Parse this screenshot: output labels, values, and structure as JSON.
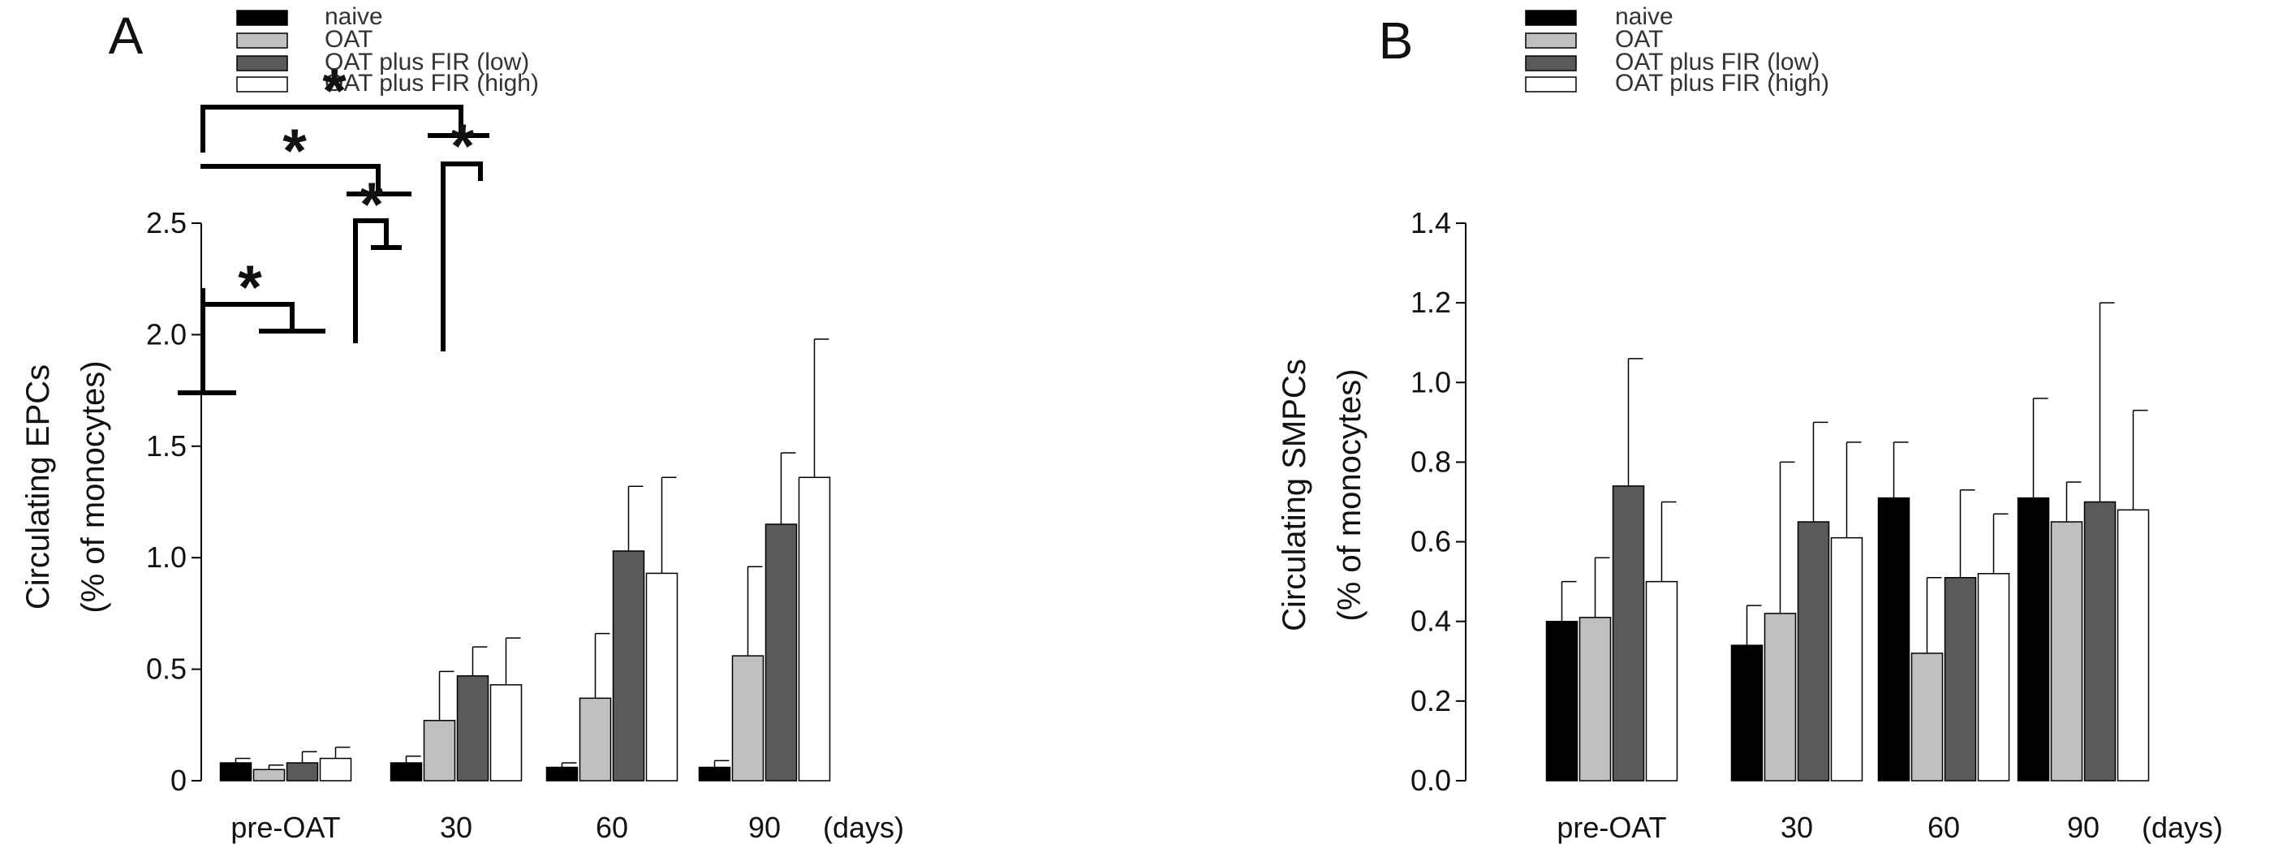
{
  "chart_data": [
    {
      "panel": "A",
      "type": "bar",
      "ylabel_line1": "Circulating EPCs",
      "ylabel_line2": "(% of monocytes)",
      "ylim": [
        0,
        2.5
      ],
      "yticks": [
        0,
        0.5,
        1.0,
        1.5,
        2.0,
        2.5
      ],
      "ytick_labels": [
        "0",
        "0.5",
        "1.0",
        "1.5",
        "2.0",
        "2.5"
      ],
      "categories": [
        "pre-OAT",
        "30",
        "60",
        "90"
      ],
      "x_unit": "(days)",
      "series": [
        {
          "name": "naive",
          "fill": "#000000",
          "values": [
            0.08,
            0.08,
            0.06,
            0.06
          ],
          "errors": [
            0.02,
            0.03,
            0.02,
            0.03
          ]
        },
        {
          "name": "OAT",
          "fill": "#c0c0c0",
          "values": [
            0.05,
            0.27,
            0.37,
            0.56
          ],
          "errors": [
            0.02,
            0.22,
            0.29,
            0.4
          ]
        },
        {
          "name": "OAT plus FIR (low)",
          "fill": "#5a5a5a",
          "values": [
            0.08,
            0.47,
            1.03,
            1.15
          ],
          "errors": [
            0.05,
            0.13,
            0.29,
            0.32
          ]
        },
        {
          "name": "OAT plus FIR (high)",
          "fill": "#ffffff",
          "values": [
            0.1,
            0.43,
            0.93,
            1.36
          ],
          "errors": [
            0.05,
            0.21,
            0.43,
            0.62
          ]
        }
      ],
      "significance_marker": "*"
    },
    {
      "panel": "B",
      "type": "bar",
      "ylabel_line1": "Circulating SMPCs",
      "ylabel_line2": "(% of monocytes)",
      "ylim": [
        0,
        1.4
      ],
      "yticks": [
        0,
        0.2,
        0.4,
        0.6,
        0.8,
        1.0,
        1.2,
        1.4
      ],
      "ytick_labels": [
        "0.0",
        "0.2",
        "0.4",
        "0.6",
        "0.8",
        "1.0",
        "1.2",
        "1.4"
      ],
      "categories": [
        "pre-OAT",
        "30",
        "60",
        "90"
      ],
      "x_unit": "(days)",
      "series": [
        {
          "name": "naive",
          "fill": "#000000",
          "values": [
            0.4,
            0.34,
            0.71,
            0.71
          ],
          "errors": [
            0.1,
            0.1,
            0.14,
            0.25
          ]
        },
        {
          "name": "OAT",
          "fill": "#c0c0c0",
          "values": [
            0.41,
            0.42,
            0.32,
            0.65
          ],
          "errors": [
            0.15,
            0.38,
            0.19,
            0.1
          ]
        },
        {
          "name": "OAT plus FIR (low)",
          "fill": "#5a5a5a",
          "values": [
            0.74,
            0.65,
            0.51,
            0.7
          ],
          "errors": [
            0.32,
            0.25,
            0.22,
            0.5
          ]
        },
        {
          "name": "OAT plus FIR (high)",
          "fill": "#ffffff",
          "values": [
            0.5,
            0.61,
            0.52,
            0.68
          ],
          "errors": [
            0.2,
            0.24,
            0.15,
            0.25
          ]
        }
      ]
    }
  ]
}
